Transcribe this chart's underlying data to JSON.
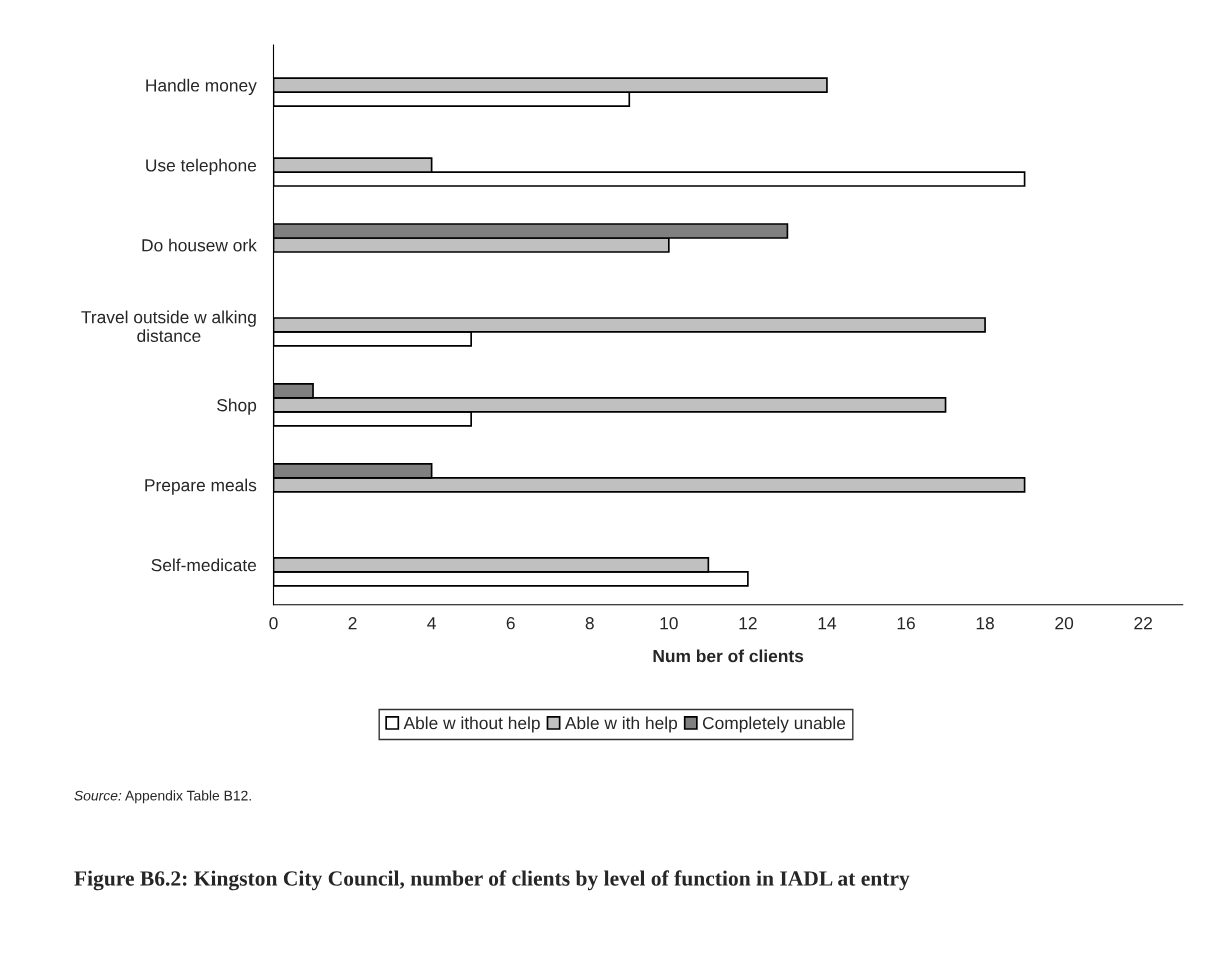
{
  "chart_data": {
    "type": "bar",
    "orientation": "horizontal",
    "title": "Figure B6.2: Kingston City Council, number of clients by level of function in IADL at entry",
    "xlabel": "Num ber of clients",
    "categories": [
      "Handle money",
      "Use telephone",
      "Do housew ork",
      "Travel outside w alking\ndistance",
      "Shop",
      "Prepare meals",
      "Self-medicate"
    ],
    "series": [
      {
        "name": "Able w ithout help",
        "color": "#ffffff",
        "values": [
          9,
          19,
          null,
          5,
          5,
          null,
          12
        ]
      },
      {
        "name": "Able w ith help",
        "color": "#c0c0c0",
        "values": [
          14,
          4,
          10,
          18,
          17,
          19,
          11
        ]
      },
      {
        "name": "Completely unable",
        "color": "#808080",
        "values": [
          null,
          null,
          13,
          null,
          1,
          4,
          null
        ]
      }
    ],
    "xlim": [
      0,
      23
    ],
    "xticks": [
      0,
      2,
      4,
      6,
      8,
      10,
      12,
      14,
      16,
      18,
      20,
      22
    ],
    "grid": false,
    "legend": "bottom",
    "annotations": [
      "Source: Appendix Table B12."
    ]
  }
}
